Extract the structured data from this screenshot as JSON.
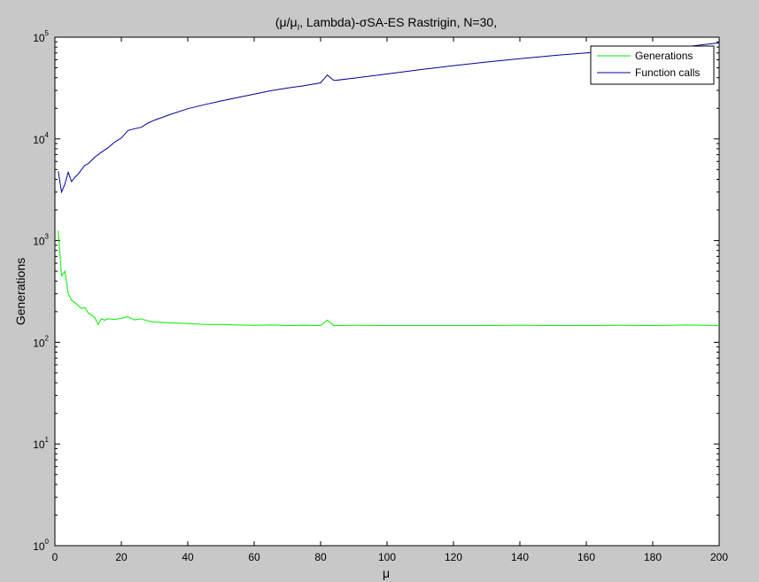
{
  "window": {
    "background": "#c8c8c8"
  },
  "chart_data": {
    "type": "line",
    "title": {
      "prefix": "(μ/μ",
      "subscript": "I",
      "suffix": ", Lambda)-σSA-ES Rastrigin, N=30,"
    },
    "xlabel": "μ",
    "ylabel": "Generations",
    "xlim": [
      0,
      200
    ],
    "ylim": [
      1,
      100000
    ],
    "yscale": "log",
    "x_ticks": [
      "0",
      "20",
      "40",
      "60",
      "80",
      "100",
      "120",
      "140",
      "160",
      "180",
      "200"
    ],
    "y_ticks": [
      {
        "base": "10",
        "exp": "0"
      },
      {
        "base": "10",
        "exp": "1"
      },
      {
        "base": "10",
        "exp": "2"
      },
      {
        "base": "10",
        "exp": "3"
      },
      {
        "base": "10",
        "exp": "4"
      },
      {
        "base": "10",
        "exp": "5"
      }
    ],
    "grid": false,
    "legend_position": "top-right",
    "series": [
      {
        "name": "Generations",
        "color": "#00ee00",
        "points": [
          [
            1,
            1250
          ],
          [
            2,
            450
          ],
          [
            3,
            500
          ],
          [
            4,
            300
          ],
          [
            5,
            260
          ],
          [
            6,
            245
          ],
          [
            7,
            230
          ],
          [
            8,
            215
          ],
          [
            9,
            220
          ],
          [
            10,
            195
          ],
          [
            11,
            185
          ],
          [
            12,
            175
          ],
          [
            13,
            150
          ],
          [
            14,
            170
          ],
          [
            15,
            165
          ],
          [
            16,
            170
          ],
          [
            18,
            168
          ],
          [
            20,
            172
          ],
          [
            22,
            178
          ],
          [
            24,
            166
          ],
          [
            26,
            170
          ],
          [
            28,
            162
          ],
          [
            30,
            158
          ],
          [
            35,
            155
          ],
          [
            40,
            153
          ],
          [
            45,
            150
          ],
          [
            50,
            150
          ],
          [
            55,
            148
          ],
          [
            60,
            147
          ],
          [
            65,
            148
          ],
          [
            70,
            146
          ],
          [
            75,
            147
          ],
          [
            80,
            146
          ],
          [
            82,
            165
          ],
          [
            84,
            146
          ],
          [
            90,
            147
          ],
          [
            100,
            146
          ],
          [
            110,
            146
          ],
          [
            120,
            146
          ],
          [
            130,
            146
          ],
          [
            140,
            147
          ],
          [
            150,
            146
          ],
          [
            160,
            146
          ],
          [
            170,
            147
          ],
          [
            180,
            146
          ],
          [
            190,
            148
          ],
          [
            200,
            146
          ]
        ]
      },
      {
        "name": "Function calls",
        "color": "#000099",
        "points": [
          [
            1,
            4800
          ],
          [
            2,
            3000
          ],
          [
            3,
            3600
          ],
          [
            4,
            4700
          ],
          [
            5,
            3800
          ],
          [
            6,
            4200
          ],
          [
            7,
            4500
          ],
          [
            8,
            5000
          ],
          [
            9,
            5500
          ],
          [
            10,
            5700
          ],
          [
            12,
            6600
          ],
          [
            14,
            7400
          ],
          [
            16,
            8200
          ],
          [
            18,
            9300
          ],
          [
            20,
            10200
          ],
          [
            22,
            12100
          ],
          [
            24,
            12600
          ],
          [
            26,
            13000
          ],
          [
            28,
            14300
          ],
          [
            30,
            15300
          ],
          [
            35,
            17500
          ],
          [
            40,
            19800
          ],
          [
            45,
            21700
          ],
          [
            50,
            23600
          ],
          [
            55,
            25500
          ],
          [
            60,
            27600
          ],
          [
            65,
            29800
          ],
          [
            70,
            31600
          ],
          [
            75,
            33300
          ],
          [
            80,
            35600
          ],
          [
            82,
            42500
          ],
          [
            84,
            37500
          ],
          [
            90,
            39500
          ],
          [
            100,
            43500
          ],
          [
            110,
            48000
          ],
          [
            120,
            52500
          ],
          [
            130,
            57000
          ],
          [
            140,
            61500
          ],
          [
            150,
            66000
          ],
          [
            160,
            70000
          ],
          [
            170,
            74000
          ],
          [
            180,
            77000
          ],
          [
            190,
            80500
          ],
          [
            200,
            88000
          ]
        ]
      }
    ]
  }
}
